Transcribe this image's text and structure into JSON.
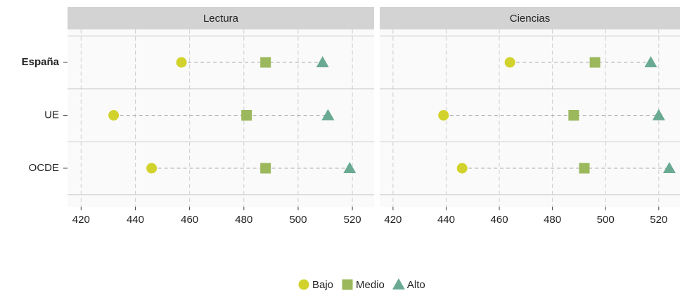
{
  "chart_data": {
    "type": "dot",
    "panels": [
      "Lectura",
      "Ciencias"
    ],
    "categories": [
      "España",
      "UE",
      "OCDE"
    ],
    "xlim": [
      415,
      528
    ],
    "xticks": [
      420,
      440,
      460,
      480,
      500,
      520
    ],
    "grid": true,
    "legend": "bottom",
    "series": [
      {
        "name": "Bajo",
        "color": "#d2d22c",
        "marker": "circle",
        "values": [
          [
            457,
            432,
            446
          ],
          [
            464,
            439,
            446
          ]
        ]
      },
      {
        "name": "Medio",
        "color": "#9bb85c",
        "marker": "square",
        "values": [
          [
            488,
            481,
            488
          ],
          [
            496,
            488,
            492
          ]
        ]
      },
      {
        "name": "Alto",
        "color": "#6aaa93",
        "marker": "triangle",
        "values": [
          [
            509,
            511,
            519
          ],
          [
            517,
            520,
            524
          ]
        ]
      }
    ]
  }
}
